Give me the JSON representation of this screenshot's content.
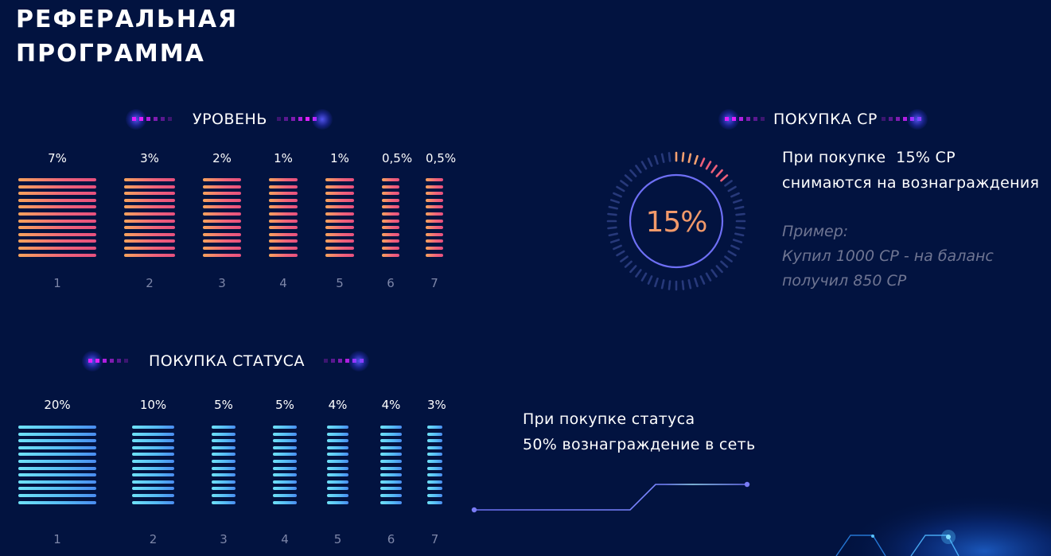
{
  "title": {
    "line1": "РЕФЕРАЛЬНАЯ",
    "line2": "ПРОГРАММА"
  },
  "colors": {
    "background": "#021340",
    "warm_bars": "#f0637c",
    "cool_bars": "#55b9f5",
    "ring": "#6e6ff5",
    "dots": "#e01fff"
  },
  "level": {
    "heading": "УРОВЕНЬ",
    "levels": [
      {
        "level": "1",
        "percent": "7%"
      },
      {
        "level": "2",
        "percent": "3%"
      },
      {
        "level": "3",
        "percent": "2%"
      },
      {
        "level": "4",
        "percent": "1%"
      },
      {
        "level": "5",
        "percent": "1%"
      },
      {
        "level": "6",
        "percent": "0,5%"
      },
      {
        "level": "7",
        "percent": "0,5%"
      }
    ]
  },
  "purchase_cp": {
    "heading": "ПОКУПКА СР",
    "gauge_value": "15%",
    "gauge_fraction": 0.15,
    "line1": "При покупке  15% СР",
    "line2": "снимаются на вознаграждения",
    "example_title": "Пример:",
    "example_line1": "Купил 1000 СР - на баланс",
    "example_line2": "получил 850 СР"
  },
  "status": {
    "heading": "ПОКУПКА СТАТУСА",
    "levels": [
      {
        "level": "1",
        "percent": "20%"
      },
      {
        "level": "2",
        "percent": "10%"
      },
      {
        "level": "3",
        "percent": "5%"
      },
      {
        "level": "4",
        "percent": "5%"
      },
      {
        "level": "5",
        "percent": "4%"
      },
      {
        "level": "6",
        "percent": "4%"
      },
      {
        "level": "7",
        "percent": "3%"
      }
    ],
    "line1": "При покупке статуса",
    "line2": "50% вознаграждение в сеть"
  }
}
